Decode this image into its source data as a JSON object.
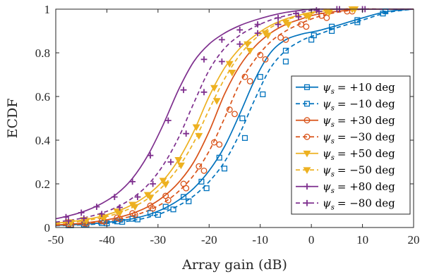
{
  "chart_data": {
    "type": "line",
    "xlabel": "Array gain (dB)",
    "ylabel": "ECDF",
    "xlim": [
      -50,
      20
    ],
    "ylim": [
      0,
      1
    ],
    "xticks": [
      -50,
      -40,
      -30,
      -20,
      -10,
      0,
      10,
      20
    ],
    "yticks": [
      0,
      0.2,
      0.4,
      0.6,
      0.8,
      1
    ],
    "xtick_labels": [
      "-50",
      "-40",
      "-30",
      "-20",
      "-10",
      "0",
      "10",
      "20"
    ],
    "ytick_labels": [
      "0",
      "0.2",
      "0.4",
      "0.6",
      "0.8",
      "1"
    ],
    "grid": false,
    "legend_position": "right",
    "colors": {
      "blue": "#0072bd",
      "orange": "#d95319",
      "yellow": "#edb120",
      "purple": "#7e2f8e",
      "axis": "#262626"
    },
    "series": [
      {
        "name": "ψ_s = +10 deg",
        "legend_prefix": "ψ",
        "legend_sub": "s",
        "legend_value": "= +10 deg",
        "color": "#0072bd",
        "dash": "solid",
        "marker": "square",
        "x": [
          -50,
          -47,
          -44,
          -41,
          -38,
          -35,
          -32,
          -29,
          -26,
          -23,
          -20,
          -17,
          -14,
          -11,
          -8,
          -5,
          -2,
          0,
          2,
          5,
          10,
          15,
          20
        ],
        "y": [
          0.01,
          0.012,
          0.016,
          0.021,
          0.029,
          0.04,
          0.058,
          0.085,
          0.125,
          0.18,
          0.26,
          0.37,
          0.52,
          0.68,
          0.8,
          0.86,
          0.885,
          0.895,
          0.905,
          0.925,
          0.96,
          0.99,
          1.0
        ],
        "marker_x": [
          -47.5,
          -44.5,
          -41,
          -38,
          -35,
          -31.5,
          -28.5,
          -25,
          -21.5,
          -18,
          -13.5,
          -10,
          -5,
          0.5,
          4,
          9,
          14.5
        ],
        "marker_y": [
          0.01,
          0.014,
          0.02,
          0.028,
          0.04,
          0.066,
          0.095,
          0.14,
          0.21,
          0.32,
          0.5,
          0.69,
          0.81,
          0.88,
          0.92,
          0.95,
          0.99
        ]
      },
      {
        "name": "ψ_s = −10 deg",
        "legend_prefix": "ψ",
        "legend_sub": "s",
        "legend_value": "= −10 deg",
        "color": "#0072bd",
        "dash": "dashed",
        "marker": "square",
        "x": [
          -50,
          -47,
          -44,
          -41,
          -38,
          -35,
          -32,
          -29,
          -26,
          -23,
          -20,
          -17,
          -14,
          -11,
          -8,
          -5,
          -2,
          0,
          2,
          5,
          10,
          15,
          20
        ],
        "y": [
          0.008,
          0.01,
          0.013,
          0.017,
          0.023,
          0.032,
          0.046,
          0.068,
          0.1,
          0.145,
          0.21,
          0.3,
          0.43,
          0.59,
          0.73,
          0.81,
          0.855,
          0.875,
          0.89,
          0.915,
          0.95,
          0.985,
          1.0
        ],
        "marker_x": [
          -47,
          -44,
          -40,
          -37,
          -34,
          -30,
          -27,
          -24,
          -20.5,
          -17,
          -13,
          -9.5,
          -5,
          0,
          4,
          9,
          14
        ],
        "marker_y": [
          0.01,
          0.013,
          0.019,
          0.026,
          0.037,
          0.058,
          0.083,
          0.12,
          0.18,
          0.27,
          0.41,
          0.61,
          0.76,
          0.86,
          0.9,
          0.94,
          0.98
        ]
      },
      {
        "name": "ψ_s = +30 deg",
        "legend_prefix": "ψ",
        "legend_sub": "s",
        "legend_value": "= +30 deg",
        "color": "#d95319",
        "dash": "solid",
        "marker": "circle",
        "x": [
          -50,
          -47,
          -44,
          -41,
          -38,
          -35,
          -32,
          -29,
          -26,
          -23,
          -20,
          -17,
          -14,
          -11,
          -8,
          -5,
          -2,
          0,
          2,
          5,
          10,
          15,
          20
        ],
        "y": [
          0.012,
          0.016,
          0.022,
          0.031,
          0.045,
          0.065,
          0.095,
          0.14,
          0.205,
          0.3,
          0.44,
          0.61,
          0.74,
          0.83,
          0.89,
          0.93,
          0.955,
          0.97,
          0.98,
          0.99,
          1.0,
          1.0,
          1.0
        ],
        "marker_x": [
          -47.5,
          -44.5,
          -41,
          -38,
          -35,
          -31.5,
          -28.5,
          -25,
          -22,
          -19,
          -16,
          -13,
          -10,
          -6,
          -2,
          2,
          7
        ],
        "marker_y": [
          0.015,
          0.02,
          0.03,
          0.045,
          0.065,
          0.1,
          0.145,
          0.2,
          0.28,
          0.39,
          0.54,
          0.69,
          0.79,
          0.87,
          0.93,
          0.97,
          0.99
        ]
      },
      {
        "name": "ψ_s = −30 deg",
        "legend_prefix": "ψ",
        "legend_sub": "s",
        "legend_value": "= −30 deg",
        "color": "#d95319",
        "dash": "dashed",
        "marker": "circle",
        "x": [
          -50,
          -47,
          -44,
          -41,
          -38,
          -35,
          -32,
          -29,
          -26,
          -23,
          -20,
          -17,
          -14,
          -11,
          -8,
          -5,
          -2,
          0,
          2,
          5,
          10,
          15,
          20
        ],
        "y": [
          0.01,
          0.013,
          0.018,
          0.026,
          0.037,
          0.053,
          0.077,
          0.112,
          0.165,
          0.24,
          0.35,
          0.5,
          0.66,
          0.77,
          0.85,
          0.9,
          0.935,
          0.955,
          0.97,
          0.985,
          1.0,
          1.0,
          1.0
        ],
        "marker_x": [
          -47,
          -44,
          -40.5,
          -37.5,
          -34.5,
          -31,
          -28,
          -24.5,
          -21,
          -18,
          -15,
          -12,
          -9,
          -5,
          -1,
          3,
          8
        ],
        "marker_y": [
          0.013,
          0.018,
          0.027,
          0.04,
          0.058,
          0.087,
          0.125,
          0.18,
          0.26,
          0.38,
          0.52,
          0.67,
          0.77,
          0.86,
          0.92,
          0.96,
          0.99
        ]
      },
      {
        "name": "ψ_s = +50 deg",
        "legend_prefix": "ψ",
        "legend_sub": "s",
        "legend_value": "= +50 deg",
        "color": "#edb120",
        "dash": "solid",
        "marker": "triangle-down",
        "x": [
          -50,
          -47,
          -44,
          -41,
          -38,
          -35,
          -32,
          -29,
          -26,
          -23,
          -20,
          -17,
          -14,
          -11,
          -8,
          -5,
          -2,
          0,
          2,
          5,
          10,
          15,
          20
        ],
        "y": [
          0.02,
          0.027,
          0.037,
          0.052,
          0.074,
          0.105,
          0.15,
          0.215,
          0.31,
          0.44,
          0.6,
          0.73,
          0.82,
          0.88,
          0.925,
          0.955,
          0.975,
          0.985,
          0.99,
          1.0,
          1.0,
          1.0,
          1.0
        ],
        "marker_x": [
          -47.5,
          -44.5,
          -41,
          -38,
          -35,
          -32,
          -29,
          -26,
          -22.5,
          -19,
          -16,
          -12.5,
          -9,
          -5,
          -1,
          3,
          8
        ],
        "marker_y": [
          0.025,
          0.035,
          0.05,
          0.074,
          0.105,
          0.15,
          0.215,
          0.31,
          0.46,
          0.64,
          0.75,
          0.84,
          0.89,
          0.94,
          0.97,
          0.99,
          1.0
        ]
      },
      {
        "name": "ψ_s = −50 deg",
        "legend_prefix": "ψ",
        "legend_sub": "s",
        "legend_value": "= −50 deg",
        "color": "#edb120",
        "dash": "dashed",
        "marker": "triangle-down",
        "x": [
          -50,
          -47,
          -44,
          -41,
          -38,
          -35,
          -32,
          -29,
          -26,
          -23,
          -20,
          -17,
          -14,
          -11,
          -8,
          -5,
          -2,
          0,
          2,
          5,
          10,
          15,
          20
        ],
        "y": [
          0.017,
          0.023,
          0.032,
          0.045,
          0.064,
          0.092,
          0.132,
          0.19,
          0.275,
          0.39,
          0.54,
          0.68,
          0.79,
          0.865,
          0.915,
          0.95,
          0.97,
          0.98,
          0.99,
          1.0,
          1.0,
          1.0,
          1.0
        ],
        "marker_x": [
          -47,
          -44,
          -40.5,
          -37.5,
          -34.5,
          -31.5,
          -28.5,
          -25.5,
          -22,
          -18.5,
          -15.5,
          -12,
          -8.5,
          -4.5,
          -0.5,
          3.5,
          8.5
        ],
        "marker_y": [
          0.022,
          0.031,
          0.045,
          0.066,
          0.095,
          0.138,
          0.198,
          0.285,
          0.42,
          0.58,
          0.71,
          0.81,
          0.88,
          0.93,
          0.965,
          0.985,
          1.0
        ]
      },
      {
        "name": "ψ_s = +80 deg",
        "legend_prefix": "ψ",
        "legend_sub": "s",
        "legend_value": "= +80 deg",
        "color": "#7e2f8e",
        "dash": "solid",
        "marker": "plus",
        "x": [
          -50,
          -47,
          -44,
          -41,
          -38,
          -35,
          -32,
          -29,
          -26,
          -23,
          -20,
          -17,
          -14,
          -11,
          -8,
          -5,
          -2,
          0,
          2,
          5,
          10,
          15,
          20
        ],
        "y": [
          0.04,
          0.056,
          0.078,
          0.11,
          0.155,
          0.225,
          0.33,
          0.47,
          0.63,
          0.76,
          0.84,
          0.89,
          0.925,
          0.95,
          0.97,
          0.985,
          0.995,
          1.0,
          1.0,
          1.0,
          1.0,
          1.0,
          1.0
        ],
        "marker_x": [
          -48,
          -45,
          -42,
          -38.5,
          -35,
          -31.5,
          -28,
          -25,
          -21,
          -17.5,
          -14,
          -10.5,
          -6.5,
          -3,
          1,
          5,
          10
        ],
        "marker_y": [
          0.048,
          0.068,
          0.095,
          0.14,
          0.21,
          0.33,
          0.49,
          0.63,
          0.77,
          0.86,
          0.905,
          0.93,
          0.96,
          0.98,
          0.995,
          1.0,
          1.0
        ]
      },
      {
        "name": "ψ_s = −80 deg",
        "legend_prefix": "ψ",
        "legend_sub": "s",
        "legend_value": "= −80 deg",
        "color": "#7e2f8e",
        "dash": "dashed",
        "marker": "plus",
        "x": [
          -50,
          -47,
          -44,
          -41,
          -38,
          -35,
          -32,
          -29,
          -26,
          -23,
          -20,
          -17,
          -14,
          -11,
          -8,
          -5,
          -2,
          0,
          2,
          5,
          10,
          15,
          20
        ],
        "y": [
          0.025,
          0.034,
          0.047,
          0.066,
          0.094,
          0.135,
          0.195,
          0.285,
          0.41,
          0.57,
          0.72,
          0.82,
          0.88,
          0.92,
          0.95,
          0.97,
          0.985,
          0.995,
          1.0,
          1.0,
          1.0,
          1.0,
          1.0
        ],
        "marker_x": [
          -47.5,
          -44.5,
          -41,
          -37.5,
          -34,
          -31,
          -27.5,
          -24.5,
          -21,
          -17.5,
          -14,
          -10.5,
          -6.5,
          -2.5,
          1.5,
          5.5,
          10.5
        ],
        "marker_y": [
          0.03,
          0.042,
          0.062,
          0.092,
          0.14,
          0.2,
          0.3,
          0.43,
          0.62,
          0.76,
          0.84,
          0.89,
          0.93,
          0.965,
          0.99,
          1.0,
          1.0
        ]
      }
    ]
  }
}
